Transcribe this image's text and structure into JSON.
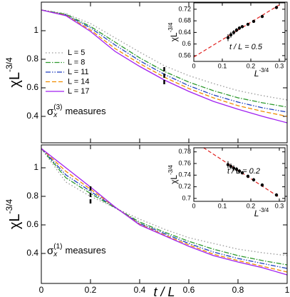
{
  "chart_data": [
    {
      "type": "line",
      "ylabel": "χL",
      "ylabel_sup": "-3/4",
      "xlim": [
        0,
        1
      ],
      "ylim": [
        0.215,
        1.2
      ],
      "xticks": [
        0,
        0.2,
        0.4,
        0.6,
        0.8,
        1
      ],
      "yticks": [
        0.4,
        0.6,
        0.8,
        1
      ],
      "xtick_labels": false,
      "x": [
        0,
        0.1,
        0.2,
        0.3,
        0.4,
        0.5,
        0.6,
        0.7,
        0.8,
        0.9,
        1
      ],
      "series": [
        {
          "name": "L = 5",
          "color": "#999999",
          "values": [
            1.145,
            1.12,
            1.05,
            0.95,
            0.85,
            0.755,
            0.685,
            0.63,
            0.58,
            0.545,
            0.515
          ]
        },
        {
          "name": "L = 8",
          "color": "#2e9a2e",
          "values": [
            1.145,
            1.115,
            1.03,
            0.92,
            0.81,
            0.715,
            0.64,
            0.58,
            0.53,
            0.495,
            0.465
          ]
        },
        {
          "name": "L = 11",
          "color": "#1f3fbf",
          "values": [
            1.145,
            1.11,
            1.02,
            0.9,
            0.79,
            0.695,
            0.615,
            0.55,
            0.5,
            0.46,
            0.43
          ]
        },
        {
          "name": "L = 14",
          "color": "#f08c00",
          "values": [
            1.145,
            1.108,
            1.005,
            0.875,
            0.77,
            0.675,
            0.595,
            0.53,
            0.475,
            0.435,
            0.4
          ]
        },
        {
          "name": "L = 17",
          "color": "#a020f0",
          "values": [
            1.145,
            1.105,
            0.995,
            0.855,
            0.75,
            0.655,
            0.575,
            0.505,
            0.45,
            0.4,
            0.355
          ]
        }
      ],
      "legend": true,
      "marker": {
        "x": 0.5,
        "y": [
          0.625,
          0.755
        ]
      },
      "annotation": {
        "symbol": "σ",
        "sub": "x",
        "sup": "(3)",
        "text": "measures"
      }
    },
    {
      "type": "line",
      "ylabel": "χL",
      "ylabel_sup": "-3/4",
      "xlabel": "t / L",
      "xlim": [
        0,
        1
      ],
      "ylim": [
        0.19,
        1.16
      ],
      "xticks": [
        0,
        0.2,
        0.4,
        0.6,
        0.8,
        1
      ],
      "yticks": [
        0.4,
        0.6,
        0.8,
        1
      ],
      "x": [
        0,
        0.1,
        0.2,
        0.3,
        0.4,
        0.5,
        0.6,
        0.7,
        0.8,
        0.9,
        1
      ],
      "series": [
        {
          "name": "L = 5",
          "color": "#999999",
          "values": [
            1.135,
            0.9,
            0.8,
            0.72,
            0.64,
            0.57,
            0.51,
            0.47,
            0.43,
            0.405,
            0.385
          ]
        },
        {
          "name": "L = 8",
          "color": "#2e9a2e",
          "values": [
            1.135,
            0.93,
            0.82,
            0.72,
            0.62,
            0.55,
            0.485,
            0.43,
            0.385,
            0.35,
            0.32
          ]
        },
        {
          "name": "L = 11",
          "color": "#1f3fbf",
          "values": [
            1.135,
            0.95,
            0.835,
            0.722,
            0.61,
            0.54,
            0.47,
            0.41,
            0.365,
            0.33,
            0.295
          ]
        },
        {
          "name": "L = 14",
          "color": "#f08c00",
          "values": [
            1.135,
            0.975,
            0.85,
            0.724,
            0.605,
            0.53,
            0.46,
            0.395,
            0.35,
            0.31,
            0.27
          ]
        },
        {
          "name": "L = 17",
          "color": "#a020f0",
          "values": [
            1.135,
            1.0,
            0.865,
            0.725,
            0.6,
            0.525,
            0.45,
            0.385,
            0.34,
            0.3,
            0.25
          ]
        }
      ],
      "marker": {
        "x": 0.2,
        "y": [
          0.75,
          0.885
        ]
      },
      "annotation": {
        "symbol": "σ",
        "sub": "x",
        "sup": "(1)",
        "text": "measures"
      }
    },
    {
      "type": "scatter",
      "ylabel": "χL",
      "ylabel_sup": "-3/4",
      "xlabel": "L",
      "xlabel_sup": "-3/4",
      "xlim": [
        0,
        0.32
      ],
      "ylim": [
        0.54,
        0.742
      ],
      "xticks": [
        0,
        0.1,
        0.2,
        0.3
      ],
      "yticks": [
        0.56,
        0.6,
        0.64,
        0.68,
        0.72
      ],
      "x": [
        0.12,
        0.13,
        0.14,
        0.15,
        0.16,
        0.17,
        0.19,
        0.21,
        0.24,
        0.29
      ],
      "values": [
        0.622,
        0.632,
        0.64,
        0.648,
        0.655,
        0.66,
        0.668,
        0.678,
        0.695,
        0.726
      ],
      "errors": [
        0.012,
        0.01,
        0.008,
        0.007,
        0.006,
        0.005,
        0.005,
        0.004,
        0.004,
        0.004
      ],
      "color": "#000000",
      "fit_x": [
        0,
        0.3
      ],
      "fit_y": [
        0.555,
        0.735
      ],
      "fit_color": "#e0201e",
      "annotation": "t / L = 0.5"
    },
    {
      "type": "scatter",
      "ylabel": "χL",
      "ylabel_sup": "-3/4",
      "xlabel": "L",
      "xlabel_sup": "-3/4",
      "xlim": [
        0,
        0.32
      ],
      "ylim": [
        0.695,
        0.787
      ],
      "xticks": [
        0,
        0.1,
        0.2,
        0.3
      ],
      "yticks": [
        0.7,
        0.72,
        0.74,
        0.76,
        0.78
      ],
      "x": [
        0.12,
        0.13,
        0.14,
        0.15,
        0.16,
        0.17,
        0.19,
        0.21,
        0.24,
        0.29
      ],
      "values": [
        0.758,
        0.755,
        0.752,
        0.75,
        0.747,
        0.744,
        0.738,
        0.732,
        0.723,
        0.706
      ],
      "errors": [
        0.006,
        0.005,
        0.005,
        0.004,
        0.003,
        0.003,
        0.003,
        0.003,
        0.003,
        0.003
      ],
      "color": "#000000",
      "fit_x": [
        0,
        0.3
      ],
      "fit_y": [
        0.798,
        0.702
      ],
      "fit_color": "#e0201e",
      "annotation": "t / L = 0.2"
    }
  ]
}
